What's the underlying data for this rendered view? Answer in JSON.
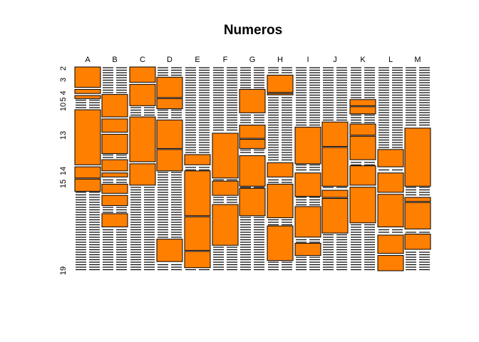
{
  "chart_data": {
    "type": "mosaic",
    "title": "Numeros",
    "xlabel": "",
    "ylabel": "",
    "fill_color": "#ff7f00",
    "stroke_color": "#000000",
    "columns": [
      "A",
      "B",
      "C",
      "D",
      "E",
      "F",
      "G",
      "H",
      "I",
      "J",
      "K",
      "L",
      "M"
    ],
    "visible_row_labels": [
      "2",
      "3",
      "5 4",
      "10",
      "13",
      "14",
      "15",
      "19"
    ],
    "segments": {
      "A": [
        [
          0.0,
          0.1
        ],
        [
          0.11,
          0.13
        ],
        [
          0.14,
          0.155
        ],
        [
          0.21,
          0.48
        ],
        [
          0.49,
          0.545
        ],
        [
          0.55,
          0.61
        ]
      ],
      "B": [
        [
          0.135,
          0.245
        ],
        [
          0.255,
          0.32
        ],
        [
          0.33,
          0.425
        ],
        [
          0.455,
          0.51
        ],
        [
          0.52,
          0.54
        ],
        [
          0.575,
          0.62
        ],
        [
          0.63,
          0.68
        ],
        [
          0.72,
          0.785
        ]
      ],
      "C": [
        [
          0.0,
          0.075
        ],
        [
          0.085,
          0.19
        ],
        [
          0.245,
          0.465
        ],
        [
          0.475,
          0.58
        ]
      ],
      "D": [
        [
          0.05,
          0.15
        ],
        [
          0.155,
          0.205
        ],
        [
          0.26,
          0.4
        ],
        [
          0.405,
          0.51
        ],
        [
          0.845,
          0.955
        ]
      ],
      "E": [
        [
          0.43,
          0.48
        ],
        [
          0.51,
          0.73
        ],
        [
          0.735,
          0.9
        ],
        [
          0.905,
          0.985
        ]
      ],
      "F": [
        [
          0.325,
          0.545
        ],
        [
          0.56,
          0.63
        ],
        [
          0.675,
          0.875
        ]
      ],
      "G": [
        [
          0.11,
          0.225
        ],
        [
          0.285,
          0.35
        ],
        [
          0.355,
          0.4
        ],
        [
          0.435,
          0.585
        ],
        [
          0.595,
          0.73
        ]
      ],
      "H": [
        [
          0.04,
          0.125
        ],
        [
          0.13,
          0.135
        ],
        [
          0.47,
          0.54
        ],
        [
          0.575,
          0.74
        ],
        [
          0.78,
          0.95
        ]
      ],
      "I": [
        [
          0.295,
          0.475
        ],
        [
          0.52,
          0.635
        ],
        [
          0.685,
          0.835
        ],
        [
          0.865,
          0.925
        ]
      ],
      "J": [
        [
          0.27,
          0.39
        ],
        [
          0.395,
          0.585
        ],
        [
          0.605,
          0.64
        ],
        [
          0.645,
          0.815
        ]
      ],
      "K": [
        [
          0.16,
          0.19
        ],
        [
          0.195,
          0.23
        ],
        [
          0.28,
          0.335
        ],
        [
          0.34,
          0.455
        ],
        [
          0.485,
          0.58
        ],
        [
          0.59,
          0.765
        ]
      ],
      "L": [
        [
          0.405,
          0.49
        ],
        [
          0.52,
          0.615
        ],
        [
          0.625,
          0.785
        ],
        [
          0.825,
          0.915
        ],
        [
          0.925,
          1.0
        ]
      ],
      "M": [
        [
          0.3,
          0.585
        ],
        [
          0.64,
          0.66
        ],
        [
          0.665,
          0.795
        ],
        [
          0.82,
          0.895
        ]
      ]
    }
  }
}
